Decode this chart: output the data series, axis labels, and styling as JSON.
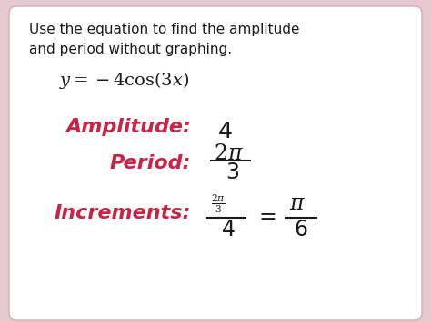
{
  "bg_outer": "#e8c8d0",
  "bg_inner": "#ffffff",
  "text_color_black": "#1a1a1a",
  "text_color_red": "#cc2244",
  "title_line1": "Use the equation to find the amplitude",
  "title_line2": "and period without graphing.",
  "label_amplitude": "Amplitude:",
  "label_period": "Period:",
  "label_increments": "Increments:",
  "figsize": [
    4.74,
    3.55
  ],
  "dpi": 100
}
